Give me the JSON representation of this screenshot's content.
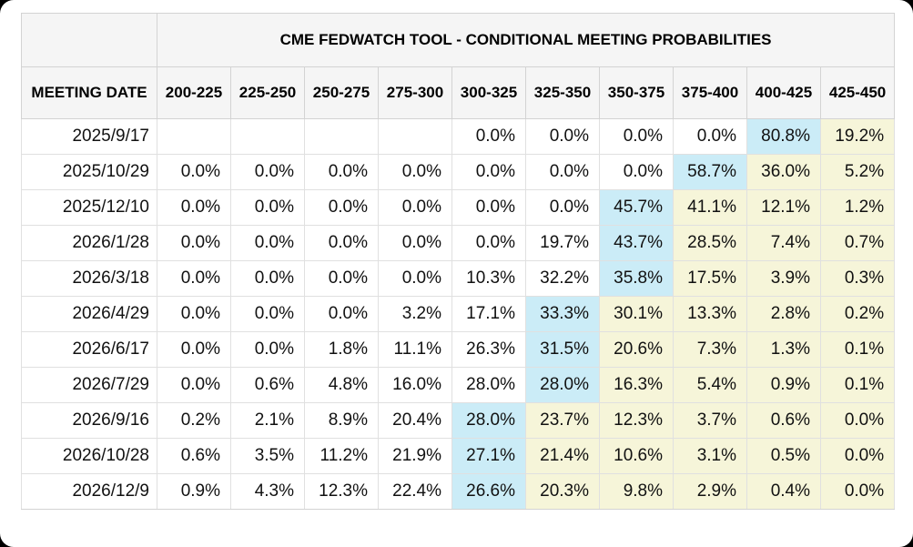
{
  "page": {
    "background": "#000000",
    "card_background": "#ffffff"
  },
  "table": {
    "title": "CME FEDWATCH TOOL - CONDITIONAL MEETING PROBABILITIES",
    "meeting_date_header": "MEETING DATE",
    "rate_columns": [
      "200-225",
      "225-250",
      "250-275",
      "275-300",
      "300-325",
      "325-350",
      "350-375",
      "375-400",
      "400-425",
      "425-450"
    ],
    "colors": {
      "highlight_blue": "#cbecf7",
      "highlight_yellow": "#f6f5d9",
      "header_background": "#f5f5f5"
    },
    "rows": [
      {
        "date": "2025/9/17",
        "values": [
          "",
          "",
          "",
          "",
          "0.0%",
          "0.0%",
          "0.0%",
          "0.0%",
          "80.8%",
          "19.2%"
        ],
        "highlights": [
          "none",
          "none",
          "none",
          "none",
          "none",
          "none",
          "none",
          "none",
          "blue",
          "yellow"
        ]
      },
      {
        "date": "2025/10/29",
        "values": [
          "0.0%",
          "0.0%",
          "0.0%",
          "0.0%",
          "0.0%",
          "0.0%",
          "0.0%",
          "58.7%",
          "36.0%",
          "5.2%"
        ],
        "highlights": [
          "none",
          "none",
          "none",
          "none",
          "none",
          "none",
          "none",
          "blue",
          "yellow",
          "yellow"
        ]
      },
      {
        "date": "2025/12/10",
        "values": [
          "0.0%",
          "0.0%",
          "0.0%",
          "0.0%",
          "0.0%",
          "0.0%",
          "45.7%",
          "41.1%",
          "12.1%",
          "1.2%"
        ],
        "highlights": [
          "none",
          "none",
          "none",
          "none",
          "none",
          "none",
          "blue",
          "yellow",
          "yellow",
          "yellow"
        ]
      },
      {
        "date": "2026/1/28",
        "values": [
          "0.0%",
          "0.0%",
          "0.0%",
          "0.0%",
          "0.0%",
          "19.7%",
          "43.7%",
          "28.5%",
          "7.4%",
          "0.7%"
        ],
        "highlights": [
          "none",
          "none",
          "none",
          "none",
          "none",
          "none",
          "blue",
          "yellow",
          "yellow",
          "yellow"
        ]
      },
      {
        "date": "2026/3/18",
        "values": [
          "0.0%",
          "0.0%",
          "0.0%",
          "0.0%",
          "10.3%",
          "32.2%",
          "35.8%",
          "17.5%",
          "3.9%",
          "0.3%"
        ],
        "highlights": [
          "none",
          "none",
          "none",
          "none",
          "none",
          "none",
          "blue",
          "yellow",
          "yellow",
          "yellow"
        ]
      },
      {
        "date": "2026/4/29",
        "values": [
          "0.0%",
          "0.0%",
          "0.0%",
          "3.2%",
          "17.1%",
          "33.3%",
          "30.1%",
          "13.3%",
          "2.8%",
          "0.2%"
        ],
        "highlights": [
          "none",
          "none",
          "none",
          "none",
          "none",
          "blue",
          "yellow",
          "yellow",
          "yellow",
          "yellow"
        ]
      },
      {
        "date": "2026/6/17",
        "values": [
          "0.0%",
          "0.0%",
          "1.8%",
          "11.1%",
          "26.3%",
          "31.5%",
          "20.6%",
          "7.3%",
          "1.3%",
          "0.1%"
        ],
        "highlights": [
          "none",
          "none",
          "none",
          "none",
          "none",
          "blue",
          "yellow",
          "yellow",
          "yellow",
          "yellow"
        ]
      },
      {
        "date": "2026/7/29",
        "values": [
          "0.0%",
          "0.6%",
          "4.8%",
          "16.0%",
          "28.0%",
          "28.0%",
          "16.3%",
          "5.4%",
          "0.9%",
          "0.1%"
        ],
        "highlights": [
          "none",
          "none",
          "none",
          "none",
          "none",
          "blue",
          "yellow",
          "yellow",
          "yellow",
          "yellow"
        ]
      },
      {
        "date": "2026/9/16",
        "values": [
          "0.2%",
          "2.1%",
          "8.9%",
          "20.4%",
          "28.0%",
          "23.7%",
          "12.3%",
          "3.7%",
          "0.6%",
          "0.0%"
        ],
        "highlights": [
          "none",
          "none",
          "none",
          "none",
          "blue",
          "yellow",
          "yellow",
          "yellow",
          "yellow",
          "yellow"
        ]
      },
      {
        "date": "2026/10/28",
        "values": [
          "0.6%",
          "3.5%",
          "11.2%",
          "21.9%",
          "27.1%",
          "21.4%",
          "10.6%",
          "3.1%",
          "0.5%",
          "0.0%"
        ],
        "highlights": [
          "none",
          "none",
          "none",
          "none",
          "blue",
          "yellow",
          "yellow",
          "yellow",
          "yellow",
          "yellow"
        ]
      },
      {
        "date": "2026/12/9",
        "values": [
          "0.9%",
          "4.3%",
          "12.3%",
          "22.4%",
          "26.6%",
          "20.3%",
          "9.8%",
          "2.9%",
          "0.4%",
          "0.0%"
        ],
        "highlights": [
          "none",
          "none",
          "none",
          "none",
          "blue",
          "yellow",
          "yellow",
          "yellow",
          "yellow",
          "yellow"
        ]
      }
    ]
  },
  "chart_data": {
    "type": "table",
    "title": "CME FEDWATCH TOOL - CONDITIONAL MEETING PROBABILITIES",
    "units": "%",
    "columns": [
      "MEETING DATE",
      "200-225",
      "225-250",
      "250-275",
      "275-300",
      "300-325",
      "325-350",
      "350-375",
      "375-400",
      "400-425",
      "425-450"
    ],
    "rows": [
      [
        "2025/9/17",
        null,
        null,
        null,
        null,
        0.0,
        0.0,
        0.0,
        0.0,
        80.8,
        19.2
      ],
      [
        "2025/10/29",
        0.0,
        0.0,
        0.0,
        0.0,
        0.0,
        0.0,
        0.0,
        58.7,
        36.0,
        5.2
      ],
      [
        "2025/12/10",
        0.0,
        0.0,
        0.0,
        0.0,
        0.0,
        0.0,
        45.7,
        41.1,
        12.1,
        1.2
      ],
      [
        "2026/1/28",
        0.0,
        0.0,
        0.0,
        0.0,
        0.0,
        19.7,
        43.7,
        28.5,
        7.4,
        0.7
      ],
      [
        "2026/3/18",
        0.0,
        0.0,
        0.0,
        0.0,
        10.3,
        32.2,
        35.8,
        17.5,
        3.9,
        0.3
      ],
      [
        "2026/4/29",
        0.0,
        0.0,
        0.0,
        3.2,
        17.1,
        33.3,
        30.1,
        13.3,
        2.8,
        0.2
      ],
      [
        "2026/6/17",
        0.0,
        0.0,
        1.8,
        11.1,
        26.3,
        31.5,
        20.6,
        7.3,
        1.3,
        0.1
      ],
      [
        "2026/7/29",
        0.0,
        0.6,
        4.8,
        16.0,
        28.0,
        28.0,
        16.3,
        5.4,
        0.9,
        0.1
      ],
      [
        "2026/9/16",
        0.2,
        2.1,
        8.9,
        20.4,
        28.0,
        23.7,
        12.3,
        3.7,
        0.6,
        0.0
      ],
      [
        "2026/10/28",
        0.6,
        3.5,
        11.2,
        21.9,
        27.1,
        21.4,
        10.6,
        3.1,
        0.5,
        0.0
      ],
      [
        "2026/12/9",
        0.9,
        4.3,
        12.3,
        22.4,
        26.6,
        20.3,
        9.8,
        2.9,
        0.4,
        0.0
      ]
    ],
    "highlight_blue_cells": "highest probability cell in each row",
    "highlight_yellow_cells": "cells to the right of the highest probability cell in each row"
  }
}
